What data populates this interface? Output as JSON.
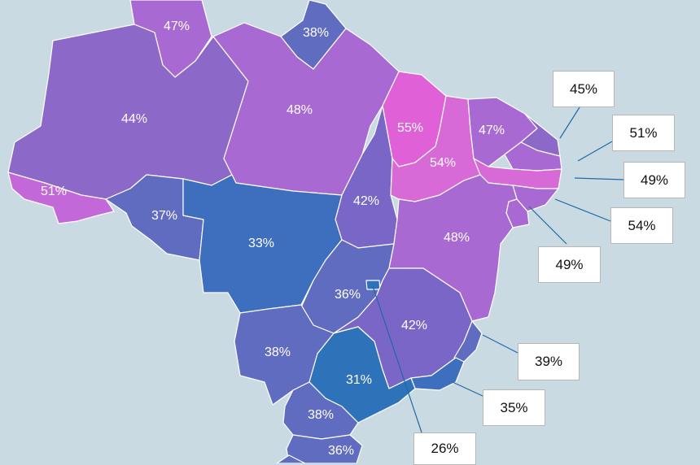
{
  "colors": {
    "background": "#c9dae3",
    "pink": "#e060d8",
    "magenta_light": "#d06cd6",
    "violet": "#a86ad2",
    "purple": "#8c68c8",
    "indigo": "#7a66c6",
    "slate_blue": "#5f6cc0",
    "blue": "#3d6fbe",
    "deep_blue": "#2e72ba",
    "callout_line": "#1f6aa5"
  },
  "states": [
    {
      "id": "roraima",
      "label": "47%",
      "color": "#a86ad2"
    },
    {
      "id": "amapa",
      "label": "38%",
      "color": "#5f6cc0"
    },
    {
      "id": "amazonas",
      "label": "44%",
      "color": "#8c68c8"
    },
    {
      "id": "para",
      "label": "48%",
      "color": "#a86ad2"
    },
    {
      "id": "acre",
      "label": "51%",
      "color": "#c268d8"
    },
    {
      "id": "rondonia",
      "label": "37%",
      "color": "#5f6cc0"
    },
    {
      "id": "mato-grosso",
      "label": "33%",
      "color": "#3d6fbe"
    },
    {
      "id": "tocantins",
      "label": "42%",
      "color": "#7a66c6"
    },
    {
      "id": "maranhao",
      "label": "55%",
      "color": "#e060d8"
    },
    {
      "id": "piaui",
      "label": "54%",
      "color": "#d86ad8"
    },
    {
      "id": "ceara",
      "label": "47%",
      "color": "#a86ad2"
    },
    {
      "id": "bahia",
      "label": "48%",
      "color": "#a86ad2"
    },
    {
      "id": "goias",
      "label": "36%",
      "color": "#5f6cc0"
    },
    {
      "id": "minas-gerais",
      "label": "42%",
      "color": "#7a66c6"
    },
    {
      "id": "mato-grosso-do-sul",
      "label": "38%",
      "color": "#5f6cc0"
    },
    {
      "id": "sao-paulo",
      "label": "31%",
      "color": "#2e72ba"
    },
    {
      "id": "parana",
      "label": "38%",
      "color": "#5f6cc0"
    },
    {
      "id": "santa-catarina",
      "label": "36%",
      "color": "#5f6cc0"
    },
    {
      "id": "rio-grande-do-sul",
      "label": "",
      "color": "#5f6cc0"
    },
    {
      "id": "rio-grande-do-norte",
      "label": "",
      "color": "#8c68c8"
    },
    {
      "id": "paraiba",
      "label": "",
      "color": "#a86ad2"
    },
    {
      "id": "pernambuco",
      "label": "",
      "color": "#d86ad8"
    },
    {
      "id": "alagoas",
      "label": "",
      "color": "#a86ad2"
    },
    {
      "id": "sergipe",
      "label": "",
      "color": "#a86ad2"
    },
    {
      "id": "espirito-santo",
      "label": "",
      "color": "#5f6cc0"
    },
    {
      "id": "rio-de-janeiro",
      "label": "",
      "color": "#3d6fbe"
    },
    {
      "id": "distrito-federal",
      "label": "",
      "color": "#2e72ba"
    }
  ],
  "callouts": [
    {
      "id": "rio-grande-do-norte",
      "label": "45%"
    },
    {
      "id": "paraiba",
      "label": "51%"
    },
    {
      "id": "pernambuco",
      "label": "49%"
    },
    {
      "id": "alagoas",
      "label": "54%"
    },
    {
      "id": "sergipe",
      "label": "49%"
    },
    {
      "id": "espirito-santo",
      "label": "39%"
    },
    {
      "id": "rio-de-janeiro",
      "label": "35%"
    },
    {
      "id": "distrito-federal",
      "label": "26%"
    }
  ]
}
